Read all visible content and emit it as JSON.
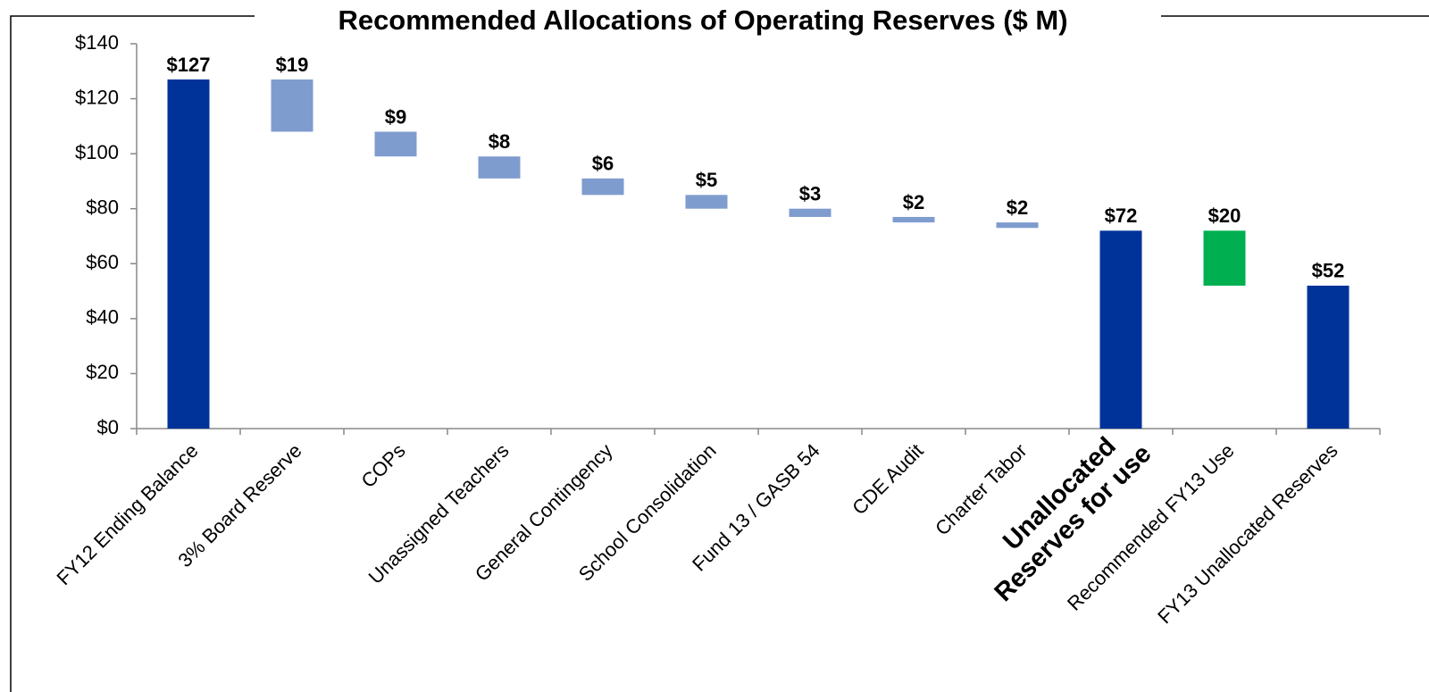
{
  "chart_data": {
    "type": "waterfall",
    "title": "Recommended Allocations of Operating Reserves ($ M)",
    "categories": [
      "FY12 Ending Balance",
      "3% Board Reserve",
      "COPs",
      "Unassigned Teachers",
      "General Contingency",
      "School Consolidation",
      "Fund 13 / GASB 54",
      "CDE Audit",
      "Charter Tabor",
      "Unallocated Reserves for use",
      "Recommended FY13 Use",
      "FY13 Unallocated Reserves"
    ],
    "values": [
      127,
      19,
      9,
      8,
      6,
      5,
      3,
      2,
      2,
      72,
      20,
      52
    ],
    "value_labels": [
      "$127",
      "$19",
      "$9",
      "$8",
      "$6",
      "$5",
      "$3",
      "$2",
      "$2",
      "$72",
      "$20",
      "$52"
    ],
    "kinds": [
      "total",
      "decrease",
      "decrease",
      "decrease",
      "decrease",
      "decrease",
      "decrease",
      "decrease",
      "decrease",
      "total",
      "decrease",
      "total"
    ],
    "colors": [
      "#003399",
      "#7f9ccf",
      "#7f9ccf",
      "#7f9ccf",
      "#7f9ccf",
      "#7f9ccf",
      "#7f9ccf",
      "#7f9ccf",
      "#7f9ccf",
      "#003399",
      "#00b050",
      "#003399"
    ],
    "bold_categories": [
      9
    ],
    "ylim": [
      0,
      140
    ],
    "yticks": [
      {
        "value": 0,
        "label": "$0"
      },
      {
        "value": 20,
        "label": "$20"
      },
      {
        "value": 40,
        "label": "$40"
      },
      {
        "value": 60,
        "label": "$60"
      },
      {
        "value": 80,
        "label": "$80"
      },
      {
        "value": 100,
        "label": "$100"
      },
      {
        "value": 120,
        "label": "$120"
      },
      {
        "value": 140,
        "label": "$140"
      }
    ],
    "grid": false
  }
}
